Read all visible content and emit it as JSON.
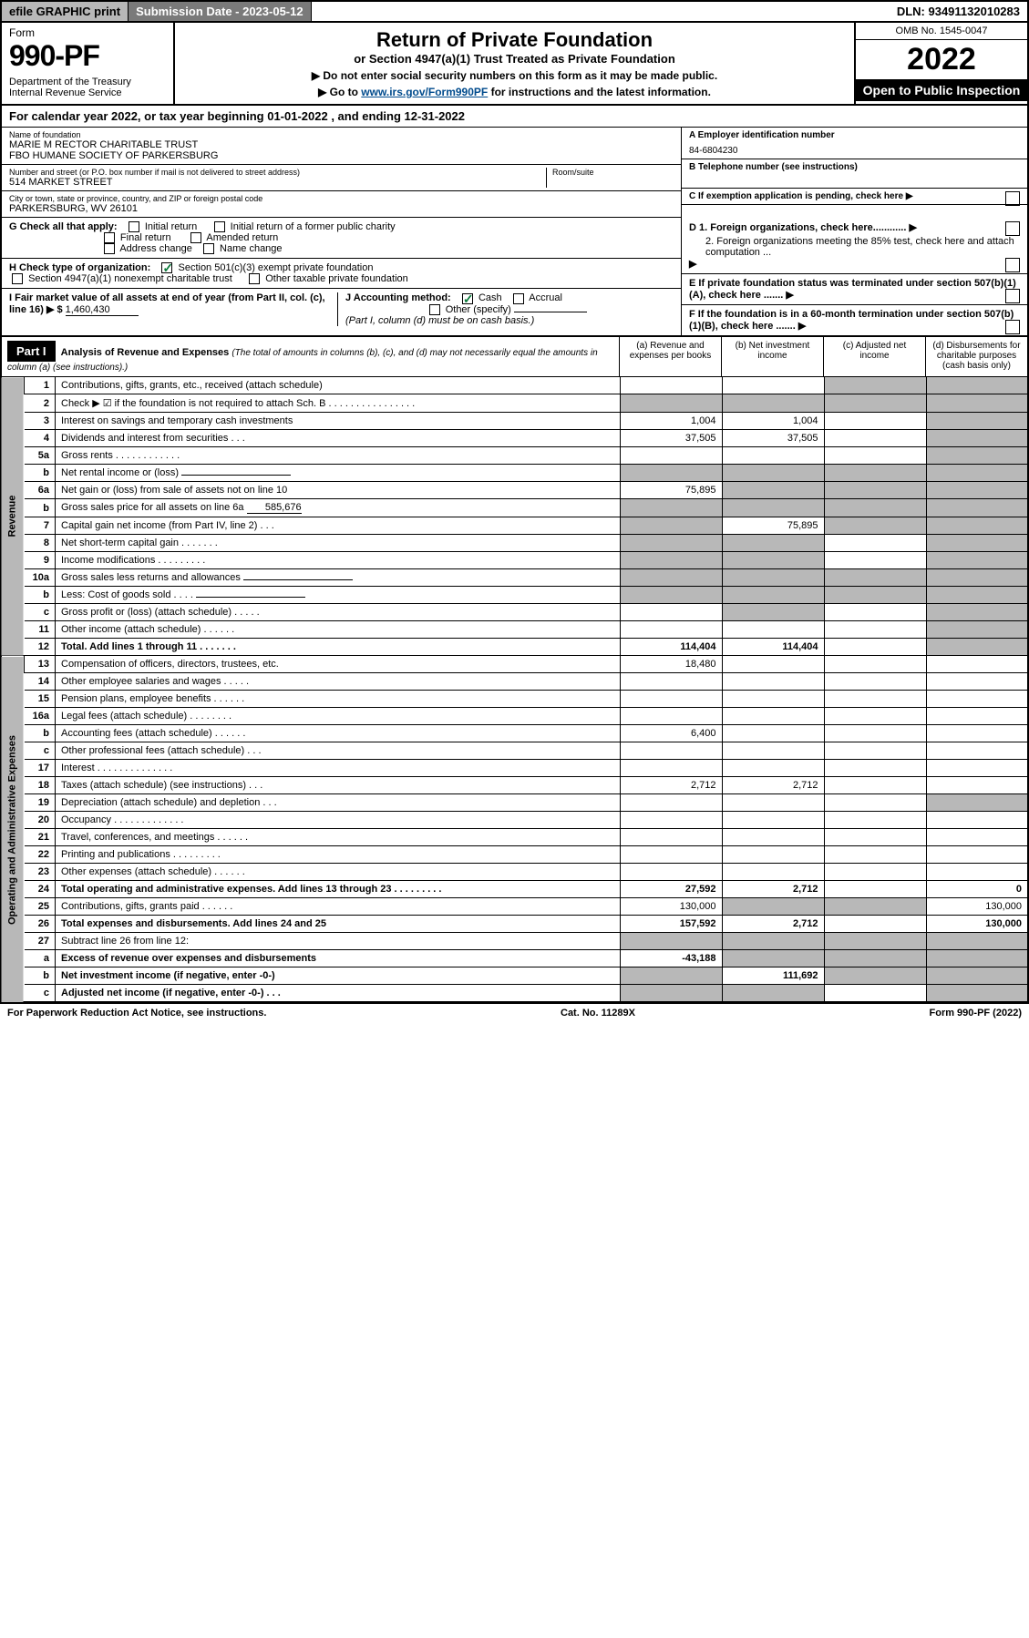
{
  "topbar": {
    "efile": "efile GRAPHIC print",
    "sub_label": "Submission Date - 2023-05-12",
    "dln": "DLN: 93491132010283"
  },
  "header": {
    "form": "Form",
    "num": "990-PF",
    "dept": "Department of the Treasury\nInternal Revenue Service",
    "title": "Return of Private Foundation",
    "subtitle": "or Section 4947(a)(1) Trust Treated as Private Foundation",
    "note1": "▶ Do not enter social security numbers on this form as it may be made public.",
    "note2_pre": "▶ Go to ",
    "note2_link": "www.irs.gov/Form990PF",
    "note2_post": " for instructions and the latest information.",
    "omb": "OMB No. 1545-0047",
    "year": "2022",
    "open": "Open to Public Inspection"
  },
  "calyear": "For calendar year 2022, or tax year beginning 01-01-2022                                           , and ending 12-31-2022",
  "foundation": {
    "name_lbl": "Name of foundation",
    "name": "MARIE M RECTOR CHARITABLE TRUST\nFBO HUMANE SOCIETY OF PARKERSBURG",
    "addr_lbl": "Number and street (or P.O. box number if mail is not delivered to street address)",
    "addr": "514 MARKET STREET",
    "room_lbl": "Room/suite",
    "city_lbl": "City or town, state or province, country, and ZIP or foreign postal code",
    "city": "PARKERSBURG, WV  26101",
    "ein_lbl": "A Employer identification number",
    "ein": "84-6804230",
    "tel_lbl": "B Telephone number (see instructions)",
    "c_lbl": "C If exemption application is pending, check here",
    "d1": "D 1. Foreign organizations, check here............",
    "d2": "2. Foreign organizations meeting the 85% test, check here and attach computation ...",
    "e_lbl": "E  If private foundation status was terminated under section 507(b)(1)(A), check here .......",
    "f_lbl": "F  If the foundation is in a 60-month termination under section 507(b)(1)(B), check here .......",
    "g_lbl": "G Check all that apply:",
    "g_opts": [
      "Initial return",
      "Initial return of a former public charity",
      "Final return",
      "Amended return",
      "Address change",
      "Name change"
    ],
    "h_lbl": "H Check type of organization:",
    "h1": "Section 501(c)(3) exempt private foundation",
    "h2": "Section 4947(a)(1) nonexempt charitable trust",
    "h3": "Other taxable private foundation",
    "i_lbl": "I Fair market value of all assets at end of year (from Part II, col. (c), line 16) ▶ $",
    "i_val": "1,460,430",
    "j_lbl": "J Accounting method:",
    "j_cash": "Cash",
    "j_accrual": "Accrual",
    "j_other": "Other (specify)",
    "j_note": "(Part I, column (d) must be on cash basis.)"
  },
  "part1": {
    "label": "Part I",
    "title": "Analysis of Revenue and Expenses",
    "title_note": " (The total of amounts in columns (b), (c), and (d) may not necessarily equal the amounts in column (a) (see instructions).)",
    "col_a": "(a)    Revenue and expenses per books",
    "col_b": "(b)   Net investment income",
    "col_c": "(c)   Adjusted net income",
    "col_d": "(d)   Disbursements for charitable purposes (cash basis only)",
    "side_rev": "Revenue",
    "side_exp": "Operating and Administrative Expenses"
  },
  "lines": [
    {
      "n": "1",
      "d": "Contributions, gifts, grants, etc., received (attach schedule)",
      "a": "",
      "b": "",
      "c_shade": true,
      "d_shade": true
    },
    {
      "n": "2",
      "d": "Check ▶ ☑ if the foundation is not required to attach Sch. B   .  .  .  .  .  .  .  .  .  .  .  .  .  .  .  .",
      "a_shade": true,
      "b_shade": true,
      "c_shade": true,
      "d_shade": true
    },
    {
      "n": "3",
      "d": "Interest on savings and temporary cash investments",
      "a": "1,004",
      "b": "1,004",
      "c": "",
      "d_shade": true
    },
    {
      "n": "4",
      "d": "Dividends and interest from securities   .  .  .",
      "a": "37,505",
      "b": "37,505",
      "c": "",
      "d_shade": true
    },
    {
      "n": "5a",
      "d": "Gross rents   .  .  .  .  .  .  .  .  .  .  .  .",
      "a": "",
      "b": "",
      "c": "",
      "d_shade": true
    },
    {
      "n": "b",
      "d": "Net rental income or (loss)",
      "a_shade": true,
      "b_shade": true,
      "c_shade": true,
      "d_shade": true,
      "inline": true
    },
    {
      "n": "6a",
      "d": "Net gain or (loss) from sale of assets not on line 10",
      "a": "75,895",
      "b_shade": true,
      "c_shade": true,
      "d_shade": true
    },
    {
      "n": "b",
      "d": "Gross sales price for all assets on line 6a",
      "inline_val": "585,676",
      "a_shade": true,
      "b_shade": true,
      "c_shade": true,
      "d_shade": true
    },
    {
      "n": "7",
      "d": "Capital gain net income (from Part IV, line 2)  .  .  .",
      "a_shade": true,
      "b": "75,895",
      "c_shade": true,
      "d_shade": true
    },
    {
      "n": "8",
      "d": "Net short-term capital gain  .  .  .  .  .  .  .",
      "a_shade": true,
      "b_shade": true,
      "c": "",
      "d_shade": true
    },
    {
      "n": "9",
      "d": "Income modifications .  .  .  .  .  .  .  .  .",
      "a_shade": true,
      "b_shade": true,
      "c": "",
      "d_shade": true
    },
    {
      "n": "10a",
      "d": "Gross sales less returns and allowances",
      "a_shade": true,
      "b_shade": true,
      "c_shade": true,
      "d_shade": true,
      "inline": true
    },
    {
      "n": "b",
      "d": "Less: Cost of goods sold  .  .  .  .",
      "a_shade": true,
      "b_shade": true,
      "c_shade": true,
      "d_shade": true,
      "inline": true
    },
    {
      "n": "c",
      "d": "Gross profit or (loss) (attach schedule)   .  .  .  .  .",
      "a": "",
      "b_shade": true,
      "c": "",
      "d_shade": true
    },
    {
      "n": "11",
      "d": "Other income (attach schedule)   .  .  .  .  .  .",
      "a": "",
      "b": "",
      "c": "",
      "d_shade": true
    },
    {
      "n": "12",
      "d": "Total. Add lines 1 through 11  .  .  .  .  .  .  .",
      "a": "114,404",
      "b": "114,404",
      "c": "",
      "d_shade": true,
      "bold": true
    }
  ],
  "exp_lines": [
    {
      "n": "13",
      "d": "Compensation of officers, directors, trustees, etc.",
      "a": "18,480",
      "b": "",
      "c": "",
      "dd": ""
    },
    {
      "n": "14",
      "d": "Other employee salaries and wages  .  .  .  .  .",
      "a": "",
      "b": "",
      "c": "",
      "dd": ""
    },
    {
      "n": "15",
      "d": "Pension plans, employee benefits .  .  .  .  .  .",
      "a": "",
      "b": "",
      "c": "",
      "dd": ""
    },
    {
      "n": "16a",
      "d": "Legal fees (attach schedule) .  .  .  .  .  .  .  .",
      "a": "",
      "b": "",
      "c": "",
      "dd": ""
    },
    {
      "n": "b",
      "d": "Accounting fees (attach schedule) .  .  .  .  .  .",
      "a": "6,400",
      "b": "",
      "c": "",
      "dd": ""
    },
    {
      "n": "c",
      "d": "Other professional fees (attach schedule)   .  .  .",
      "a": "",
      "b": "",
      "c": "",
      "dd": ""
    },
    {
      "n": "17",
      "d": "Interest .  .  .  .  .  .  .  .  .  .  .  .  .  .",
      "a": "",
      "b": "",
      "c": "",
      "dd": ""
    },
    {
      "n": "18",
      "d": "Taxes (attach schedule) (see instructions)   .  .  .",
      "a": "2,712",
      "b": "2,712",
      "c": "",
      "dd": ""
    },
    {
      "n": "19",
      "d": "Depreciation (attach schedule) and depletion  .  .  .",
      "a": "",
      "b": "",
      "c": "",
      "d_shade": true
    },
    {
      "n": "20",
      "d": "Occupancy .  .  .  .  .  .  .  .  .  .  .  .  .",
      "a": "",
      "b": "",
      "c": "",
      "dd": ""
    },
    {
      "n": "21",
      "d": "Travel, conferences, and meetings .  .  .  .  .  .",
      "a": "",
      "b": "",
      "c": "",
      "dd": ""
    },
    {
      "n": "22",
      "d": "Printing and publications .  .  .  .  .  .  .  .  .",
      "a": "",
      "b": "",
      "c": "",
      "dd": ""
    },
    {
      "n": "23",
      "d": "Other expenses (attach schedule) .  .  .  .  .  .",
      "a": "",
      "b": "",
      "c": "",
      "dd": ""
    },
    {
      "n": "24",
      "d": "Total operating and administrative expenses. Add lines 13 through 23  .  .  .  .  .  .  .  .  .",
      "a": "27,592",
      "b": "2,712",
      "c": "",
      "dd": "0",
      "bold": true
    },
    {
      "n": "25",
      "d": "Contributions, gifts, grants paid   .  .  .  .  .  .",
      "a": "130,000",
      "b_shade": true,
      "c_shade": true,
      "dd": "130,000"
    },
    {
      "n": "26",
      "d": "Total expenses and disbursements. Add lines 24 and 25",
      "a": "157,592",
      "b": "2,712",
      "c": "",
      "dd": "130,000",
      "bold": true
    },
    {
      "n": "27",
      "d": "Subtract line 26 from line 12:",
      "a_shade": true,
      "b_shade": true,
      "c_shade": true,
      "d_shade": true
    },
    {
      "n": "a",
      "d": "Excess of revenue over expenses and disbursements",
      "a": "-43,188",
      "b_shade": true,
      "c_shade": true,
      "d_shade": true,
      "bold": true
    },
    {
      "n": "b",
      "d": "Net investment income (if negative, enter -0-)",
      "a_shade": true,
      "b": "111,692",
      "c_shade": true,
      "d_shade": true,
      "bold": true
    },
    {
      "n": "c",
      "d": "Adjusted net income (if negative, enter -0-)  .  .  .",
      "a_shade": true,
      "b_shade": true,
      "c": "",
      "d_shade": true,
      "bold": true
    }
  ],
  "footer": {
    "left": "For Paperwork Reduction Act Notice, see instructions.",
    "mid": "Cat. No. 11289X",
    "right": "Form 990-PF (2022)"
  }
}
